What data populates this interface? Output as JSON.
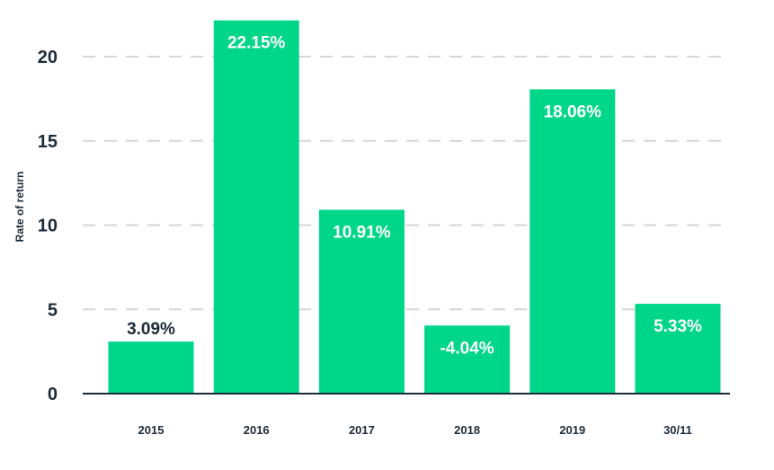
{
  "chart_data": {
    "type": "bar",
    "title": "",
    "xlabel": "",
    "ylabel": "Rate of return",
    "categories": [
      "2015",
      "2016",
      "2017",
      "2018",
      "2019",
      "30/11"
    ],
    "values": [
      3.09,
      22.15,
      10.91,
      -4.04,
      18.06,
      5.33
    ],
    "data_labels": [
      "3.09%",
      "22.15%",
      "10.91%",
      "-4.04%",
      "18.06%",
      "5.33%"
    ],
    "y_ticks": [
      0,
      5,
      10,
      15,
      20
    ],
    "ylim": [
      0,
      22.5
    ],
    "grid": "horizontal dashed",
    "legend": "none",
    "colors": {
      "bar": "#00d68a",
      "text": "#1c2b39",
      "label_on_bar": "#ffffff",
      "grid": "#d6d6d6",
      "axis": "#1c2b39"
    }
  }
}
